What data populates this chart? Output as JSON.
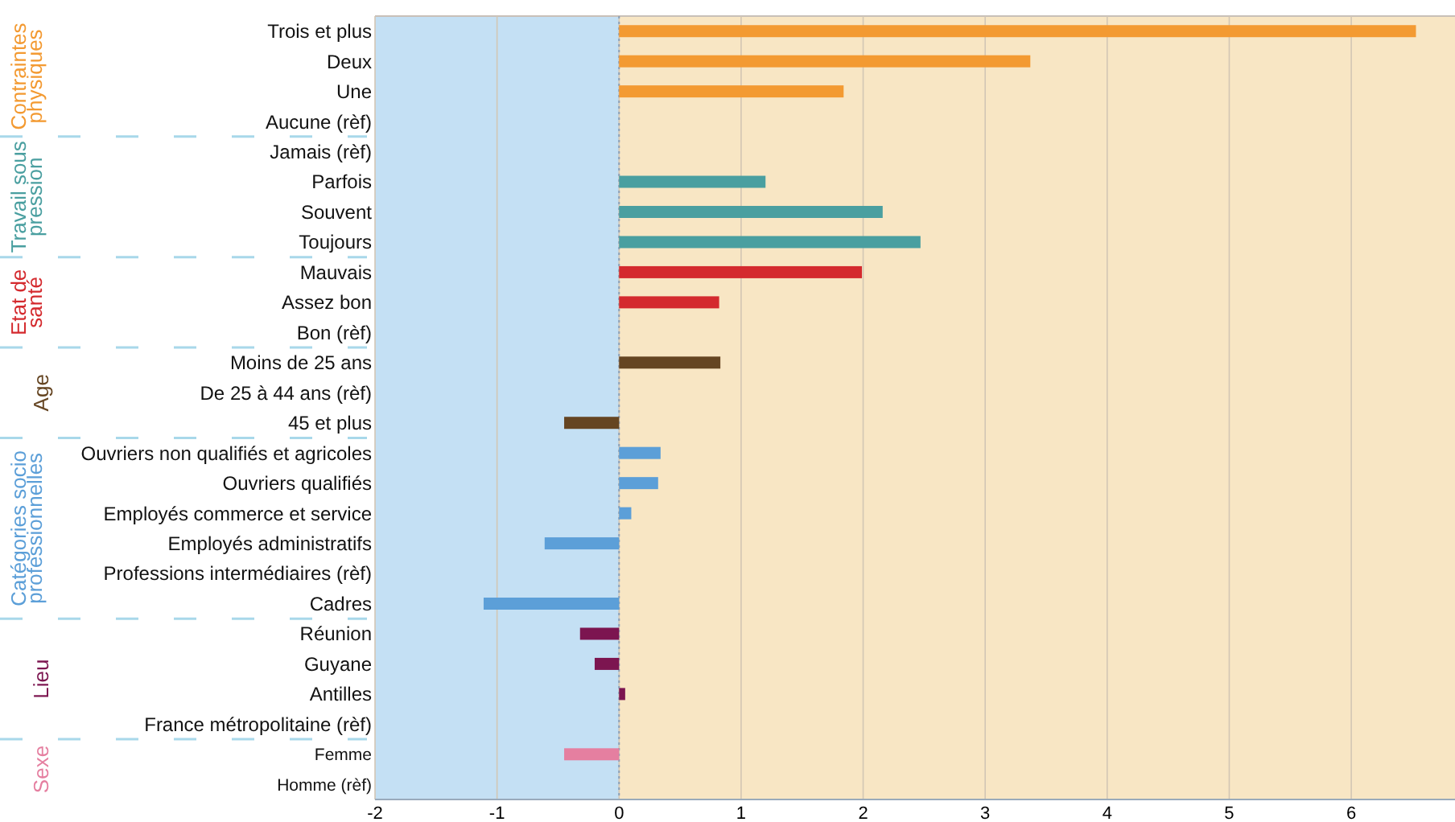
{
  "chart_data": {
    "type": "bar",
    "orientation": "horizontal",
    "categories": [
      "Trois et plus",
      "Deux",
      "Une",
      "Aucune (rèf)",
      "Jamais (rèf)",
      "Parfois",
      "Souvent",
      "Toujours",
      "Mauvais",
      "Assez bon",
      "Bon (rèf)",
      "Moins de 25 ans",
      "De 25 à 44 ans (rèf)",
      "45 et plus",
      "Ouvriers non qualifiés et agricoles",
      "Ouvriers qualifiés",
      "Employés commerce et service",
      "Employés administratifs",
      "Professions intermédiaires (rèf)",
      "Cadres",
      "Réunion",
      "Guyane",
      "Antilles",
      "France métropolitaine (rèf)",
      "Femme",
      "Homme (rèf)"
    ],
    "series": [
      {
        "name": "Contraintes physiques",
        "color": "#f39a32",
        "values": [
          6.53,
          3.37,
          1.84,
          0,
          null,
          null,
          null,
          null,
          null,
          null,
          null,
          null,
          null,
          null,
          null,
          null,
          null,
          null,
          null,
          null,
          null,
          null,
          null,
          null,
          null,
          null
        ]
      },
      {
        "name": "Travail sous pression",
        "color": "#4a9fa0",
        "values": [
          null,
          null,
          null,
          null,
          0,
          1.2,
          2.16,
          2.47,
          null,
          null,
          null,
          null,
          null,
          null,
          null,
          null,
          null,
          null,
          null,
          null,
          null,
          null,
          null,
          null,
          null,
          null
        ]
      },
      {
        "name": "Etat de santé",
        "color": "#d42a2e",
        "values": [
          null,
          null,
          null,
          null,
          null,
          null,
          null,
          null,
          1.99,
          0.82,
          0,
          null,
          null,
          null,
          null,
          null,
          null,
          null,
          null,
          null,
          null,
          null,
          null,
          null,
          null,
          null
        ]
      },
      {
        "name": "Age",
        "color": "#654522",
        "values": [
          null,
          null,
          null,
          null,
          null,
          null,
          null,
          null,
          null,
          null,
          null,
          0.83,
          0,
          -0.45,
          null,
          null,
          null,
          null,
          null,
          null,
          null,
          null,
          null,
          null,
          null,
          null
        ]
      },
      {
        "name": "Catégories socio professionnelles",
        "color": "#5c9fd8",
        "values": [
          null,
          null,
          null,
          null,
          null,
          null,
          null,
          null,
          null,
          null,
          null,
          null,
          null,
          null,
          0.34,
          0.32,
          0.1,
          -0.61,
          0,
          -1.11,
          null,
          null,
          null,
          null,
          null,
          null
        ]
      },
      {
        "name": "Lieu",
        "color": "#7c1550",
        "values": [
          null,
          null,
          null,
          null,
          null,
          null,
          null,
          null,
          null,
          null,
          null,
          null,
          null,
          null,
          null,
          null,
          null,
          null,
          null,
          null,
          -0.32,
          -0.2,
          0.05,
          0,
          null,
          null
        ]
      },
      {
        "name": "Sexe",
        "color": "#e57fa0",
        "values": [
          null,
          null,
          null,
          null,
          null,
          null,
          null,
          null,
          null,
          null,
          null,
          null,
          null,
          null,
          null,
          null,
          null,
          null,
          null,
          null,
          null,
          null,
          null,
          null,
          -0.45,
          0
        ]
      }
    ],
    "xlim": [
      -2,
      6.85
    ],
    "xticks": [
      -2,
      -1,
      0,
      1,
      2,
      3,
      4,
      5,
      6
    ],
    "grid": "x",
    "bands": [
      {
        "axis": "x",
        "from": -2,
        "to": 0,
        "color": "#c4e0f4"
      },
      {
        "axis": "x",
        "from": 0,
        "to": 6.85,
        "color": "#f8e6c4"
      }
    ],
    "ref_lines": [
      {
        "axis": "x",
        "value": 0,
        "line_style": "dotted",
        "color": "#8aa0b8"
      }
    ]
  }
}
